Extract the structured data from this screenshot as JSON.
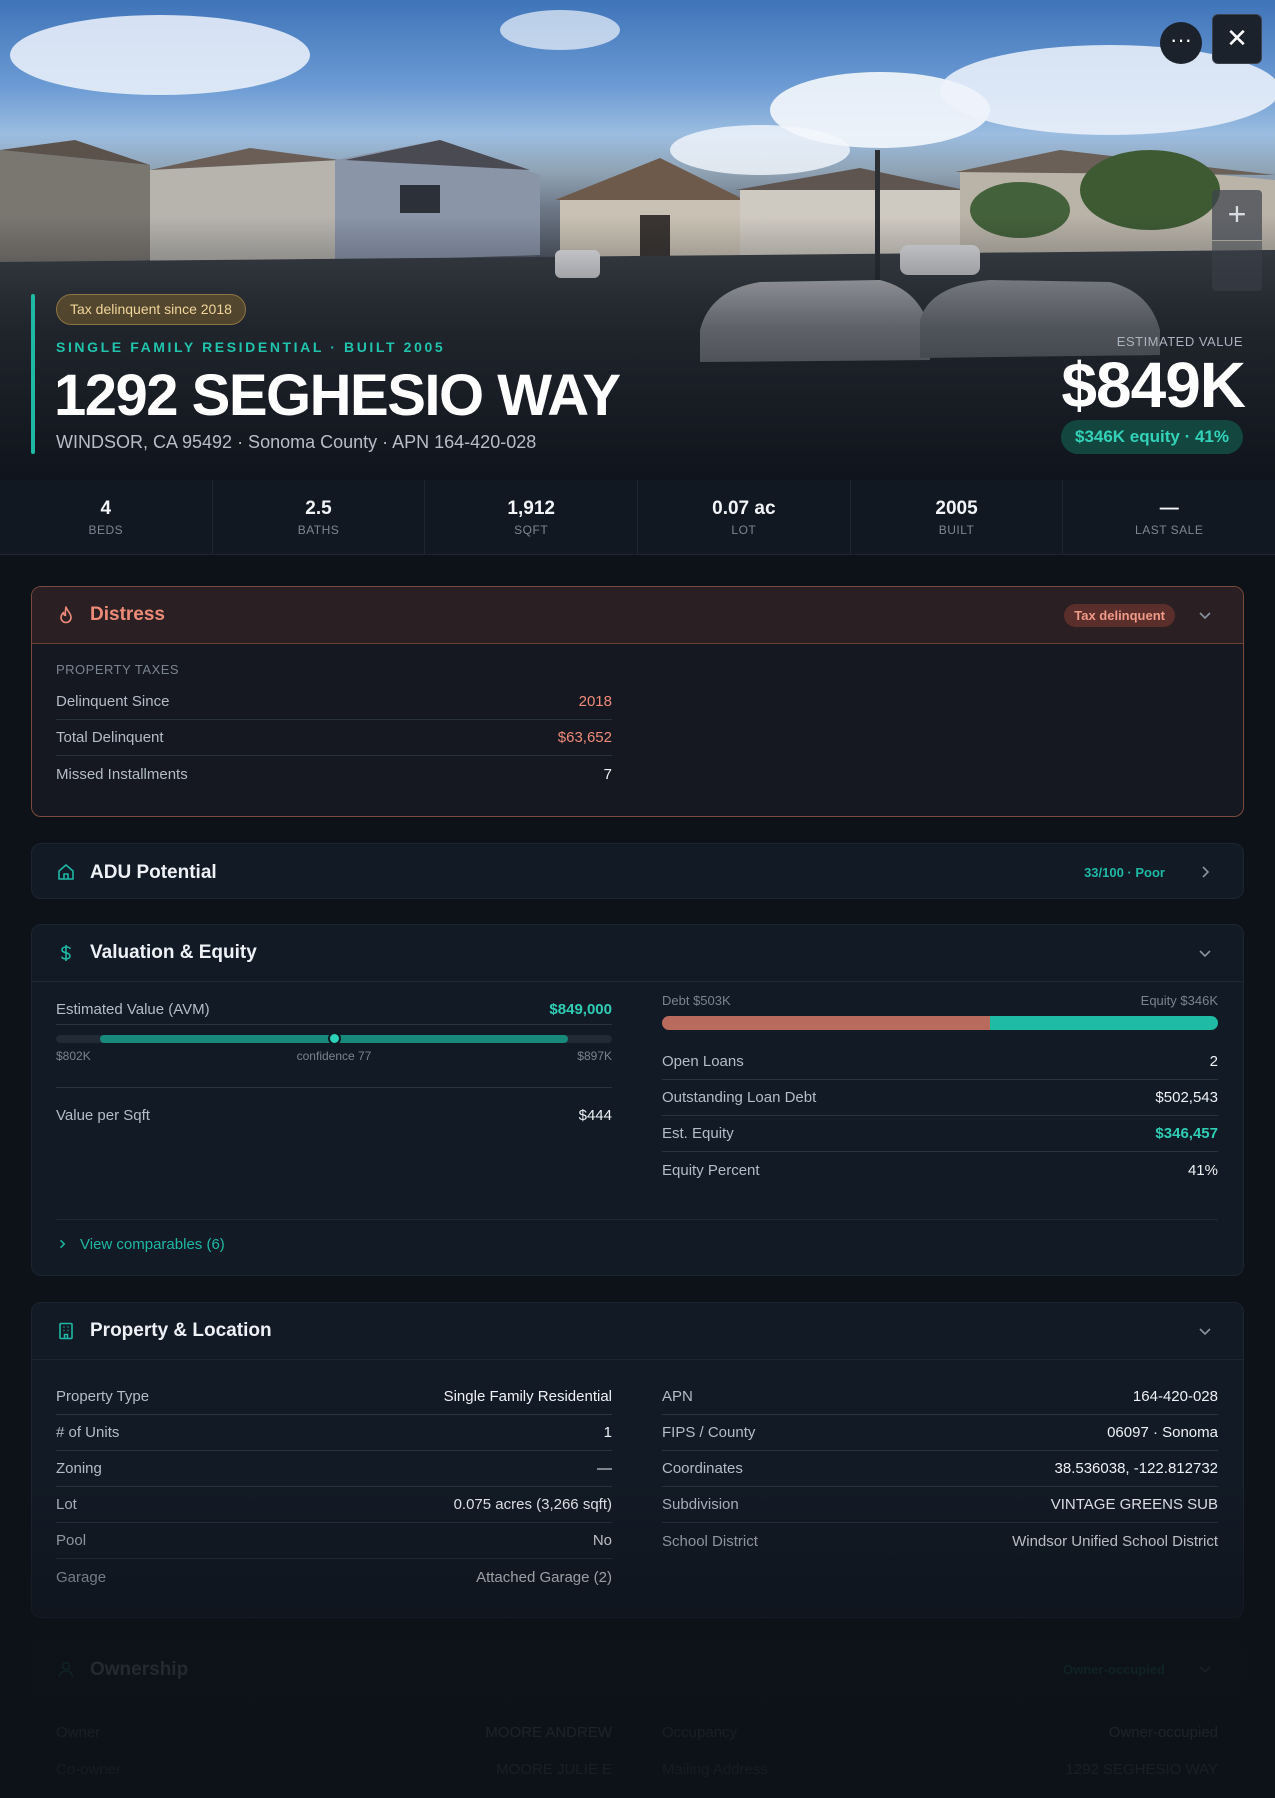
{
  "hero": {
    "tax_pill": "Tax delinquent since 2018",
    "subtitle": "SINGLE FAMILY RESIDENTIAL · BUILT 2005",
    "address": "1292 SEGHESIO WAY",
    "location": "WINDSOR, CA 95492 · Sonoma County · APN 164-420-028",
    "estimated_value_label": "ESTIMATED VALUE",
    "estimated_value": "$849K",
    "equity_pill": "$346K equity · 41%",
    "more_glyph": "···",
    "close_glyph": "✕",
    "zoom_in_glyph": "+",
    "icons": [
      "more-icon",
      "close-icon"
    ]
  },
  "stats": [
    {
      "value": "4",
      "label": "BEDS"
    },
    {
      "value": "2.5",
      "label": "BATHS"
    },
    {
      "value": "1,912",
      "label": "SQFT"
    },
    {
      "value": "0.07 ac",
      "label": "LOT"
    },
    {
      "value": "2005",
      "label": "BUILT"
    },
    {
      "value": "—",
      "label": "LAST SALE"
    }
  ],
  "distress": {
    "title": "Distress",
    "badge": "Tax delinquent",
    "section_label": "PROPERTY TAXES",
    "rows": [
      {
        "label": "Delinquent Since",
        "value": "2018"
      },
      {
        "label": "Total Delinquent",
        "value": "$63,652"
      },
      {
        "label": "Missed Installments",
        "value": "7"
      }
    ],
    "accent": "#ee8b78"
  },
  "adu": {
    "title": "ADU Potential",
    "badge": "33/100 · Poor"
  },
  "valuation": {
    "title": "Valuation & Equity",
    "avm_label": "Estimated Value (AVM)",
    "avm_value": "$849,000",
    "range_low": "$802K",
    "range_high": "$897K",
    "confidence": "confidence 77",
    "value_position_fraction": 0.5,
    "value_per_sqft_label": "Value per Sqft",
    "value_per_sqft": "$444",
    "debt_label": "Debt $503K",
    "equity_label": "Equity $346K",
    "debt_fraction": 0.59,
    "rows": [
      {
        "label": "Open Loans",
        "value": "2"
      },
      {
        "label": "Outstanding Loan Debt",
        "value": "$502,543"
      },
      {
        "label": "Est. Equity",
        "value": "$346,457"
      },
      {
        "label": "Equity Percent",
        "value": "41%"
      }
    ],
    "comparables_link": "View comparables (6)",
    "debt_color": "#b86a5c",
    "equity_color": "#20bba5"
  },
  "property": {
    "title": "Property & Location",
    "left": [
      {
        "label": "Property Type",
        "value": "Single Family Residential"
      },
      {
        "label": "# of Units",
        "value": "1"
      },
      {
        "label": "Zoning",
        "value": "—"
      },
      {
        "label": "Lot",
        "value": "0.075 acres (3,266 sqft)"
      },
      {
        "label": "Pool",
        "value": "No"
      },
      {
        "label": "Garage",
        "value": "Attached Garage (2)"
      }
    ],
    "right": [
      {
        "label": "APN",
        "value": "164-420-028"
      },
      {
        "label": "FIPS / County",
        "value": "06097 · Sonoma"
      },
      {
        "label": "Coordinates",
        "value": "38.536038, -122.812732"
      },
      {
        "label": "Subdivision",
        "value": "VINTAGE GREENS SUB"
      },
      {
        "label": "School District",
        "value": "Windsor Unified School District"
      }
    ]
  },
  "ownership": {
    "title": "Ownership",
    "badge": "Owner-occupied",
    "left": [
      {
        "label": "Owner",
        "value": "MOORE ANDREW"
      },
      {
        "label": "Co-owner",
        "value": "MOORE JULIE E"
      }
    ],
    "right": [
      {
        "label": "Occupancy",
        "value": "Owner-occupied"
      },
      {
        "label": "Mailing Address",
        "value": "1292 SEGHESIO WAY"
      }
    ]
  },
  "colors": {
    "accent_teal": "#1fb8a5",
    "background": "#0d1118",
    "card": "#121a25"
  }
}
